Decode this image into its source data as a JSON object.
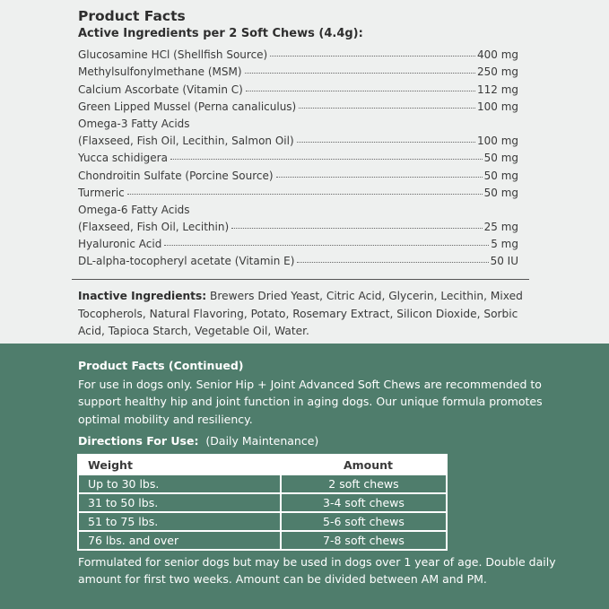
{
  "product_facts": {
    "title": "Product Facts",
    "subtitle": "Active Ingredients per 2 Soft Chews (4.4g):",
    "ingredients": [
      {
        "name": "Glucosamine HCl (Shellfish Source)",
        "amount": "400 mg"
      },
      {
        "name": "Methylsulfonylmethane (MSM)",
        "amount": "250 mg"
      },
      {
        "name": "Calcium Ascorbate (Vitamin C)",
        "amount": "112 mg"
      },
      {
        "name": "Green Lipped Mussel (Perna canaliculus)",
        "amount": "100 mg"
      },
      {
        "name": "Omega-3 Fatty Acids",
        "amount": ""
      },
      {
        "name": "(Flaxseed, Fish Oil, Lecithin, Salmon Oil)",
        "amount": "100 mg"
      },
      {
        "name": "Yucca schidigera",
        "amount": "50 mg"
      },
      {
        "name": "Chondroitin Sulfate (Porcine Source)",
        "amount": "50 mg"
      },
      {
        "name": "Turmeric",
        "amount": "50 mg"
      },
      {
        "name": "Omega-6 Fatty Acids",
        "amount": ""
      },
      {
        "name": "(Flaxseed, Fish Oil, Lecithin)",
        "amount": "25 mg"
      },
      {
        "name": "Hyaluronic Acid",
        "amount": "5 mg"
      },
      {
        "name": "DL-alpha-tocopheryl acetate (Vitamin E)",
        "amount": "50 IU"
      }
    ],
    "inactive_label": "Inactive Ingredients:",
    "inactive_text": " Brewers Dried Yeast, Citric Acid, Glycerin, Lecithin, Mixed Tocopherols, Natural Flavoring, Potato, Rosemary Extract, Silicon Dioxide, Sorbic Acid, Tapioca Starch, Vegetable Oil, Water."
  },
  "continued": {
    "title": "Product Facts (Continued)",
    "paragraph": "For use in dogs only. Senior Hip + Joint Advanced Soft Chews are recommended to support healthy hip and joint function in aging dogs. Our unique formula promotes optimal mobility and resiliency.",
    "directions_label": "Directions For Use:",
    "directions_note": "(Daily Maintenance)",
    "table": {
      "headers": [
        "Weight",
        "Amount"
      ],
      "rows": [
        [
          "Up to 30 lbs.",
          "2 soft chews"
        ],
        [
          "31 to 50 lbs.",
          "3-4 soft chews"
        ],
        [
          "51 to 75 lbs.",
          "5-6 soft chews"
        ],
        [
          "76 lbs. and over",
          "7-8 soft chews"
        ]
      ]
    },
    "footer": "Formulated for senior dogs but may be used in dogs over 1 year of age. Double daily amount for first two weeks. Amount can be divided between AM and PM."
  },
  "colors": {
    "background": "#eef0ef",
    "green_panel": "#4f7d6c"
  }
}
